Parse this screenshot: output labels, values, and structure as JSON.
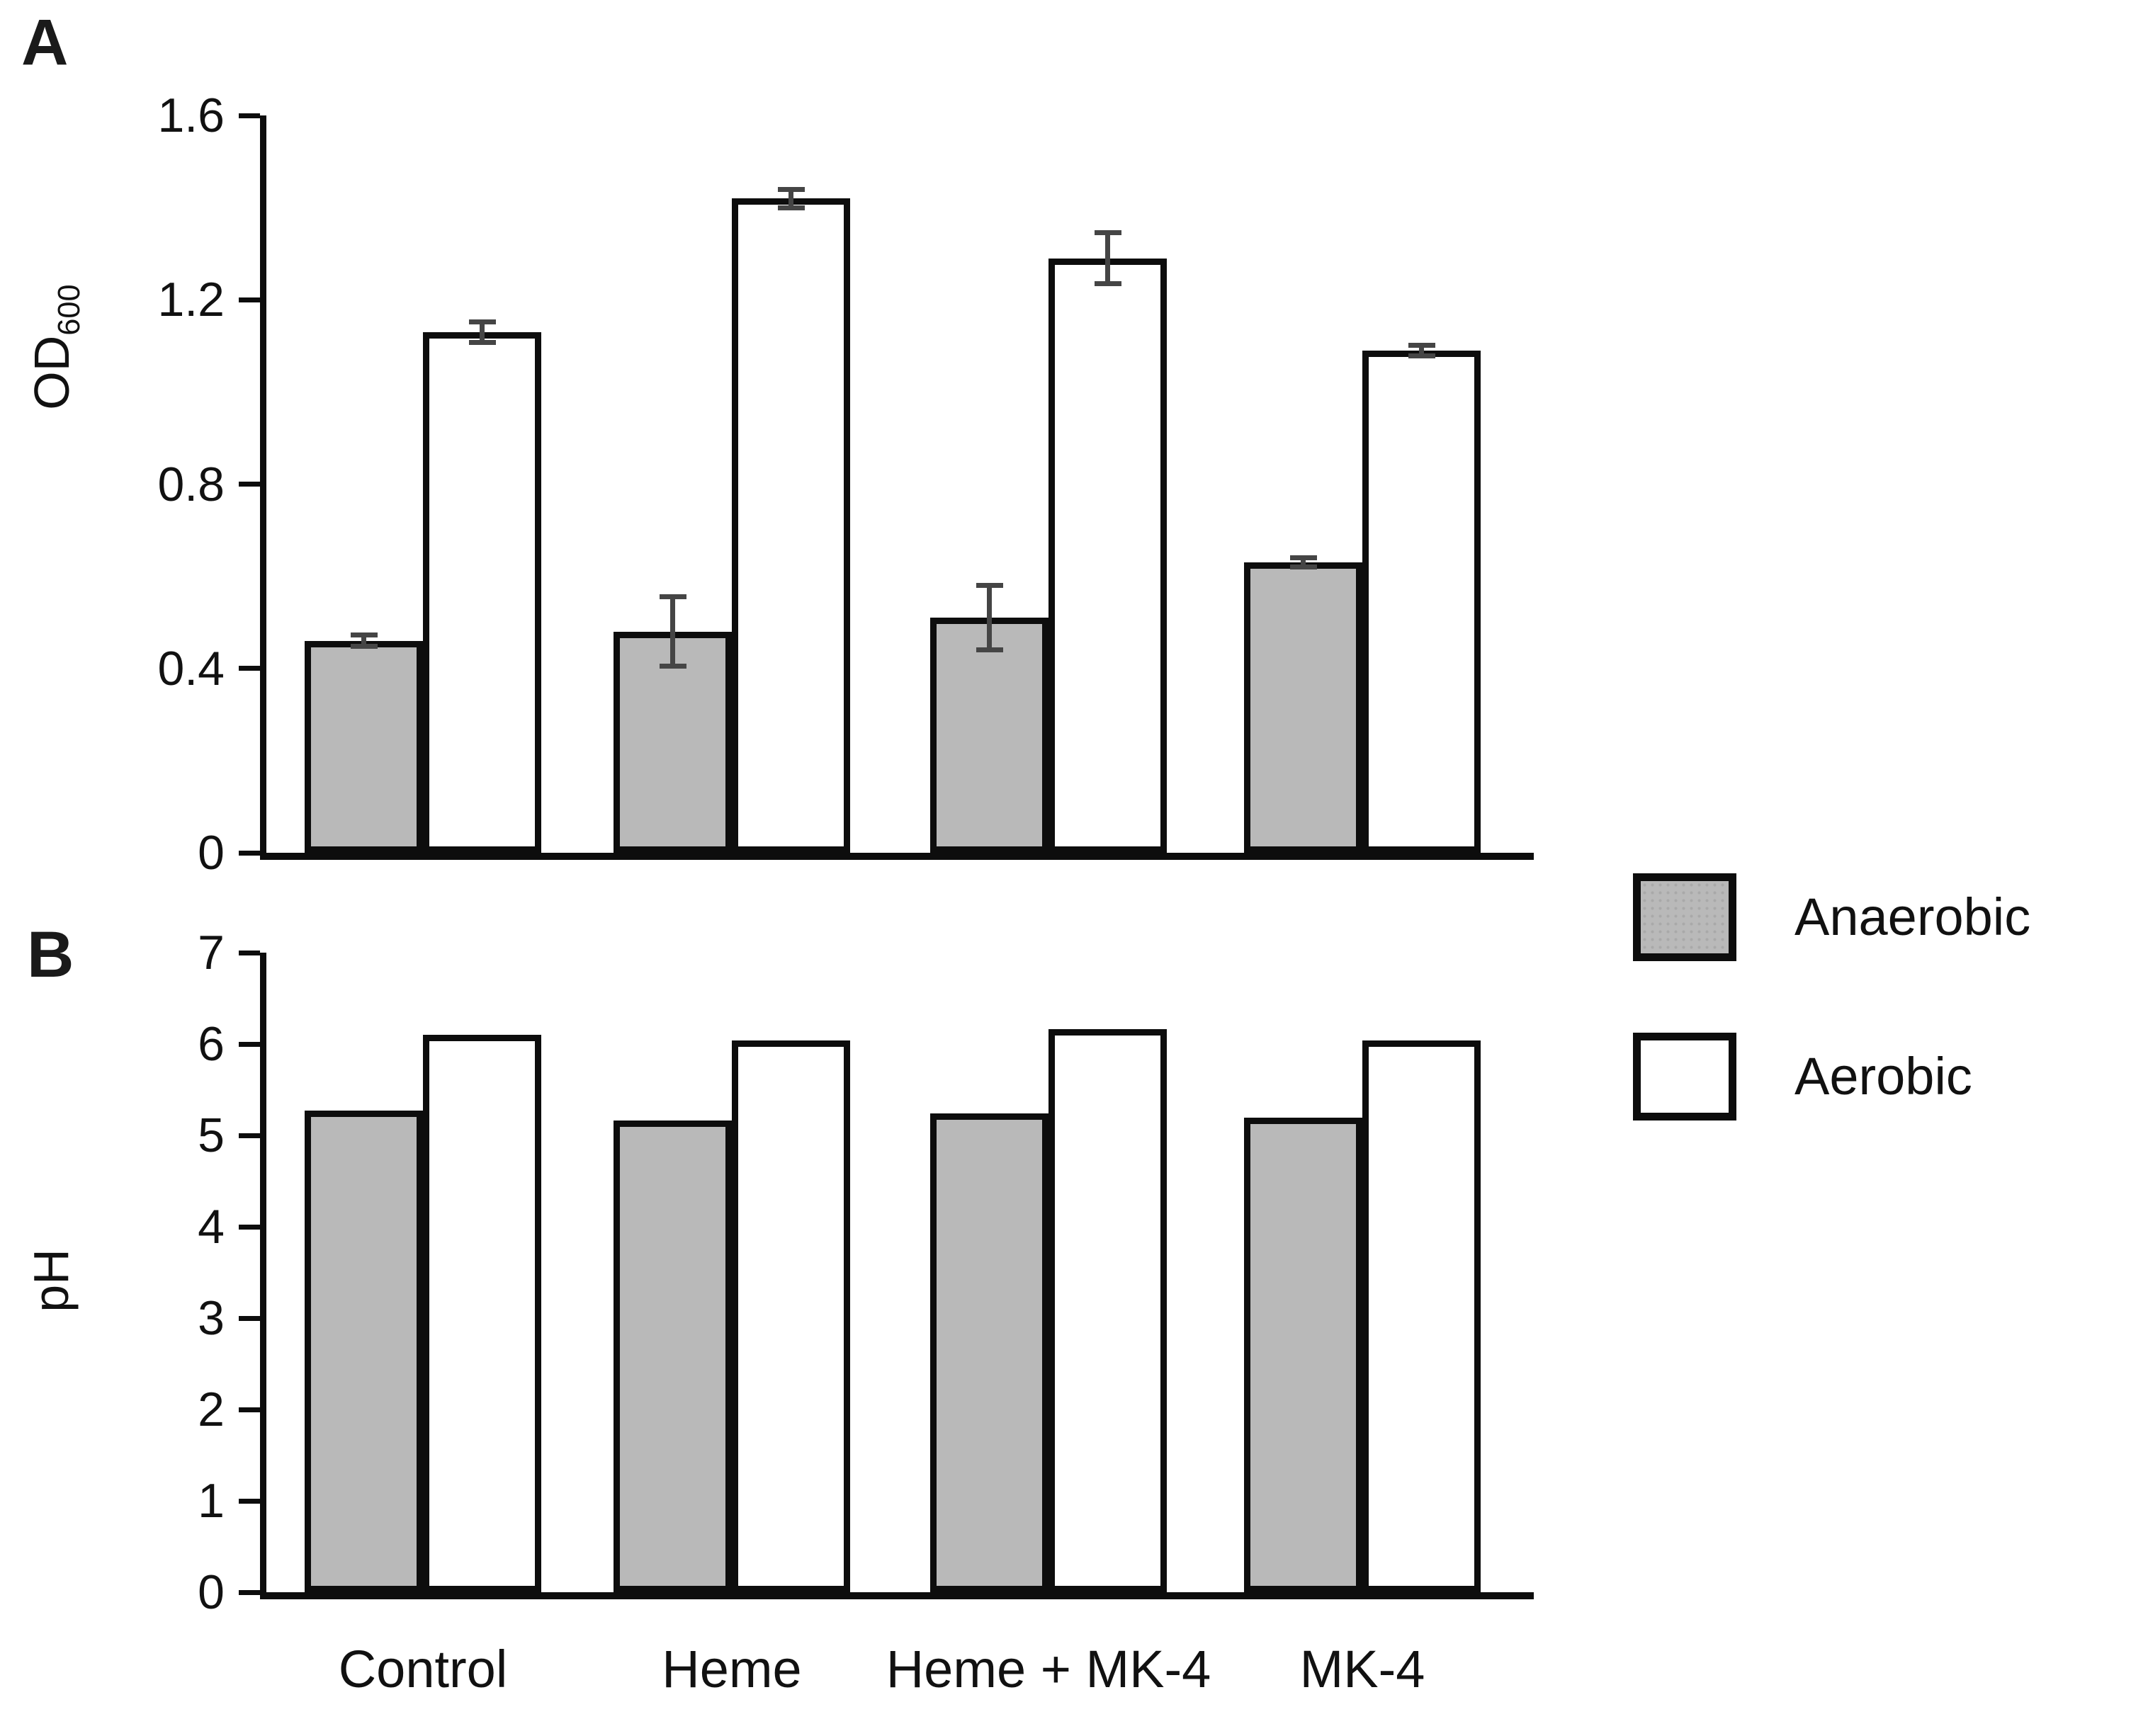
{
  "figure": {
    "panel_a_label": "A",
    "panel_b_label": "B",
    "categories": [
      "Control",
      "Heme",
      "Heme + MK-4",
      "MK-4"
    ],
    "legend": [
      {
        "label": "Anaerobic",
        "fill": "#b9b9b9"
      },
      {
        "label": "Aerobic",
        "fill": "#ffffff"
      }
    ],
    "colors": {
      "anaerobic_fill": "#b9b9b9",
      "aerobic_fill": "#ffffff",
      "outline": "#0d0d0d",
      "error_bar": "#454545",
      "background": "#ffffff"
    }
  },
  "chart_data": [
    {
      "type": "bar",
      "panel": "A",
      "title": "",
      "xlabel": "",
      "ylabel": "OD600",
      "ylabel_main": "OD",
      "ylabel_sub": "600",
      "categories": [
        "Control",
        "Heme",
        "Heme + MK-4",
        "MK-4"
      ],
      "series": [
        {
          "name": "Anaerobic",
          "fill": "#b9b9b9",
          "values": [
            0.46,
            0.48,
            0.51,
            0.63
          ],
          "errors": [
            0.012,
            0.075,
            0.07,
            0.01
          ]
        },
        {
          "name": "Aerobic",
          "fill": "#ffffff",
          "values": [
            1.13,
            1.42,
            1.29,
            1.09
          ],
          "errors": [
            0.022,
            0.02,
            0.055,
            0.012
          ]
        }
      ],
      "ylim": [
        0,
        1.6
      ],
      "yticks": [
        0,
        0.4,
        0.8,
        1.2,
        1.6
      ],
      "ytick_labels": [
        "0",
        "0.4",
        "0.8",
        "1.2",
        "1.6"
      ],
      "grid": false,
      "legend_position": "right",
      "error_bars": true
    },
    {
      "type": "bar",
      "panel": "B",
      "title": "",
      "xlabel": "",
      "ylabel": "pH",
      "categories": [
        "Control",
        "Heme",
        "Heme + MK-4",
        "MK-4"
      ],
      "series": [
        {
          "name": "Anaerobic",
          "fill": "#b9b9b9",
          "values": [
            5.27,
            5.16,
            5.24,
            5.19
          ],
          "errors": [
            0,
            0,
            0,
            0
          ]
        },
        {
          "name": "Aerobic",
          "fill": "#ffffff",
          "values": [
            6.1,
            6.04,
            6.16,
            6.04
          ],
          "errors": [
            0,
            0,
            0,
            0
          ]
        }
      ],
      "ylim": [
        0,
        7
      ],
      "yticks": [
        0,
        1,
        2,
        3,
        4,
        5,
        6,
        7
      ],
      "ytick_labels": [
        "0",
        "1",
        "2",
        "3",
        "4",
        "5",
        "6",
        "7"
      ],
      "grid": false,
      "legend_position": "right",
      "error_bars": false
    }
  ]
}
